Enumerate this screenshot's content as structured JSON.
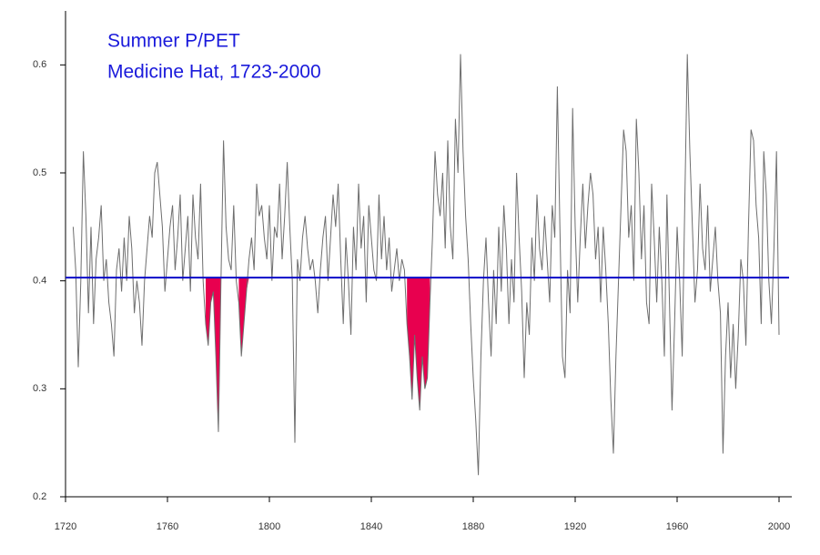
{
  "chart_data": {
    "type": "line",
    "title": "Summer P/PET",
    "subtitle": "Medicine Hat, 1723-2000",
    "title_color": "#1a1adb",
    "x": [
      1723,
      1724,
      1725,
      1726,
      1727,
      1728,
      1729,
      1730,
      1731,
      1732,
      1733,
      1734,
      1735,
      1736,
      1737,
      1738,
      1739,
      1740,
      1741,
      1742,
      1743,
      1744,
      1745,
      1746,
      1747,
      1748,
      1749,
      1750,
      1751,
      1752,
      1753,
      1754,
      1755,
      1756,
      1757,
      1758,
      1759,
      1760,
      1761,
      1762,
      1763,
      1764,
      1765,
      1766,
      1767,
      1768,
      1769,
      1770,
      1771,
      1772,
      1773,
      1774,
      1775,
      1776,
      1777,
      1778,
      1779,
      1780,
      1781,
      1782,
      1783,
      1784,
      1785,
      1786,
      1787,
      1788,
      1789,
      1790,
      1791,
      1792,
      1793,
      1794,
      1795,
      1796,
      1797,
      1798,
      1799,
      1800,
      1801,
      1802,
      1803,
      1804,
      1805,
      1806,
      1807,
      1808,
      1809,
      1810,
      1811,
      1812,
      1813,
      1814,
      1815,
      1816,
      1817,
      1818,
      1819,
      1820,
      1821,
      1822,
      1823,
      1824,
      1825,
      1826,
      1827,
      1828,
      1829,
      1830,
      1831,
      1832,
      1833,
      1834,
      1835,
      1836,
      1837,
      1838,
      1839,
      1840,
      1841,
      1842,
      1843,
      1844,
      1845,
      1846,
      1847,
      1848,
      1849,
      1850,
      1851,
      1852,
      1853,
      1854,
      1855,
      1856,
      1857,
      1858,
      1859,
      1860,
      1861,
      1862,
      1863,
      1864,
      1865,
      1866,
      1867,
      1868,
      1869,
      1870,
      1871,
      1872,
      1873,
      1874,
      1875,
      1876,
      1877,
      1878,
      1879,
      1880,
      1881,
      1882,
      1883,
      1884,
      1885,
      1886,
      1887,
      1888,
      1889,
      1890,
      1891,
      1892,
      1893,
      1894,
      1895,
      1896,
      1897,
      1898,
      1899,
      1900,
      1901,
      1902,
      1903,
      1904,
      1905,
      1906,
      1907,
      1908,
      1909,
      1910,
      1911,
      1912,
      1913,
      1914,
      1915,
      1916,
      1917,
      1918,
      1919,
      1920,
      1921,
      1922,
      1923,
      1924,
      1925,
      1926,
      1927,
      1928,
      1929,
      1930,
      1931,
      1932,
      1933,
      1934,
      1935,
      1936,
      1937,
      1938,
      1939,
      1940,
      1941,
      1942,
      1943,
      1944,
      1945,
      1946,
      1947,
      1948,
      1949,
      1950,
      1951,
      1952,
      1953,
      1954,
      1955,
      1956,
      1957,
      1958,
      1959,
      1960,
      1961,
      1962,
      1963,
      1964,
      1965,
      1966,
      1967,
      1968,
      1969,
      1970,
      1971,
      1972,
      1973,
      1974,
      1975,
      1976,
      1977,
      1978,
      1979,
      1980,
      1981,
      1982,
      1983,
      1984,
      1985,
      1986,
      1987,
      1988,
      1989,
      1990,
      1991,
      1992,
      1993,
      1994,
      1995,
      1996,
      1997,
      1998,
      1999,
      2000
    ],
    "series": [
      {
        "name": "Summer P/PET",
        "color": "#6e6e6e",
        "values": [
          0.45,
          0.41,
          0.32,
          0.4,
          0.52,
          0.46,
          0.37,
          0.45,
          0.36,
          0.42,
          0.44,
          0.47,
          0.4,
          0.42,
          0.38,
          0.36,
          0.33,
          0.41,
          0.43,
          0.39,
          0.44,
          0.4,
          0.46,
          0.43,
          0.37,
          0.4,
          0.38,
          0.34,
          0.4,
          0.43,
          0.46,
          0.44,
          0.5,
          0.51,
          0.48,
          0.45,
          0.39,
          0.42,
          0.45,
          0.47,
          0.41,
          0.44,
          0.48,
          0.4,
          0.43,
          0.46,
          0.39,
          0.48,
          0.44,
          0.42,
          0.49,
          0.4,
          0.36,
          0.34,
          0.38,
          0.39,
          0.33,
          0.26,
          0.4,
          0.53,
          0.45,
          0.42,
          0.41,
          0.47,
          0.4,
          0.38,
          0.33,
          0.36,
          0.39,
          0.42,
          0.44,
          0.41,
          0.49,
          0.46,
          0.47,
          0.44,
          0.42,
          0.47,
          0.4,
          0.45,
          0.44,
          0.49,
          0.42,
          0.46,
          0.51,
          0.45,
          0.4,
          0.25,
          0.42,
          0.4,
          0.44,
          0.46,
          0.43,
          0.41,
          0.42,
          0.4,
          0.37,
          0.41,
          0.44,
          0.46,
          0.4,
          0.44,
          0.48,
          0.45,
          0.49,
          0.42,
          0.36,
          0.44,
          0.4,
          0.35,
          0.45,
          0.41,
          0.49,
          0.43,
          0.46,
          0.38,
          0.47,
          0.44,
          0.41,
          0.4,
          0.48,
          0.42,
          0.46,
          0.41,
          0.44,
          0.39,
          0.41,
          0.43,
          0.4,
          0.42,
          0.41,
          0.36,
          0.33,
          0.29,
          0.35,
          0.31,
          0.28,
          0.33,
          0.3,
          0.31,
          0.38,
          0.44,
          0.52,
          0.48,
          0.46,
          0.5,
          0.43,
          0.53,
          0.45,
          0.42,
          0.55,
          0.5,
          0.61,
          0.52,
          0.46,
          0.42,
          0.36,
          0.31,
          0.27,
          0.22,
          0.33,
          0.4,
          0.44,
          0.38,
          0.33,
          0.41,
          0.36,
          0.45,
          0.39,
          0.47,
          0.43,
          0.36,
          0.42,
          0.38,
          0.5,
          0.44,
          0.39,
          0.31,
          0.38,
          0.35,
          0.44,
          0.4,
          0.48,
          0.43,
          0.41,
          0.46,
          0.42,
          0.38,
          0.47,
          0.44,
          0.58,
          0.45,
          0.33,
          0.31,
          0.41,
          0.37,
          0.56,
          0.45,
          0.38,
          0.44,
          0.49,
          0.43,
          0.47,
          0.5,
          0.48,
          0.42,
          0.45,
          0.38,
          0.45,
          0.41,
          0.36,
          0.29,
          0.24,
          0.33,
          0.4,
          0.47,
          0.54,
          0.52,
          0.44,
          0.47,
          0.4,
          0.55,
          0.5,
          0.42,
          0.47,
          0.38,
          0.36,
          0.49,
          0.44,
          0.38,
          0.45,
          0.4,
          0.33,
          0.48,
          0.38,
          0.28,
          0.36,
          0.45,
          0.4,
          0.33,
          0.47,
          0.61,
          0.52,
          0.45,
          0.38,
          0.41,
          0.49,
          0.43,
          0.41,
          0.47,
          0.39,
          0.42,
          0.45,
          0.4,
          0.37,
          0.24,
          0.33,
          0.38,
          0.31,
          0.36,
          0.3,
          0.35,
          0.42,
          0.4,
          0.34,
          0.45,
          0.54,
          0.53,
          0.47,
          0.44,
          0.36,
          0.52,
          0.48,
          0.4,
          0.36,
          0.43,
          0.52,
          0.35
        ]
      }
    ],
    "reference_line": {
      "value": 0.403,
      "color": "#0a0ac8"
    },
    "shaded_periods": [
      [
        1775,
        1781
      ],
      [
        1788,
        1793
      ],
      [
        1854,
        1863
      ]
    ],
    "shade_color": "#e8004f",
    "xlim": [
      1720,
      2005
    ],
    "ylim": [
      0.2,
      0.65
    ],
    "xticks": [
      1720,
      1760,
      1800,
      1840,
      1880,
      1920,
      1960,
      2000
    ],
    "yticks": [
      0.2,
      0.3,
      0.4,
      0.5,
      0.6
    ],
    "grid": false
  }
}
